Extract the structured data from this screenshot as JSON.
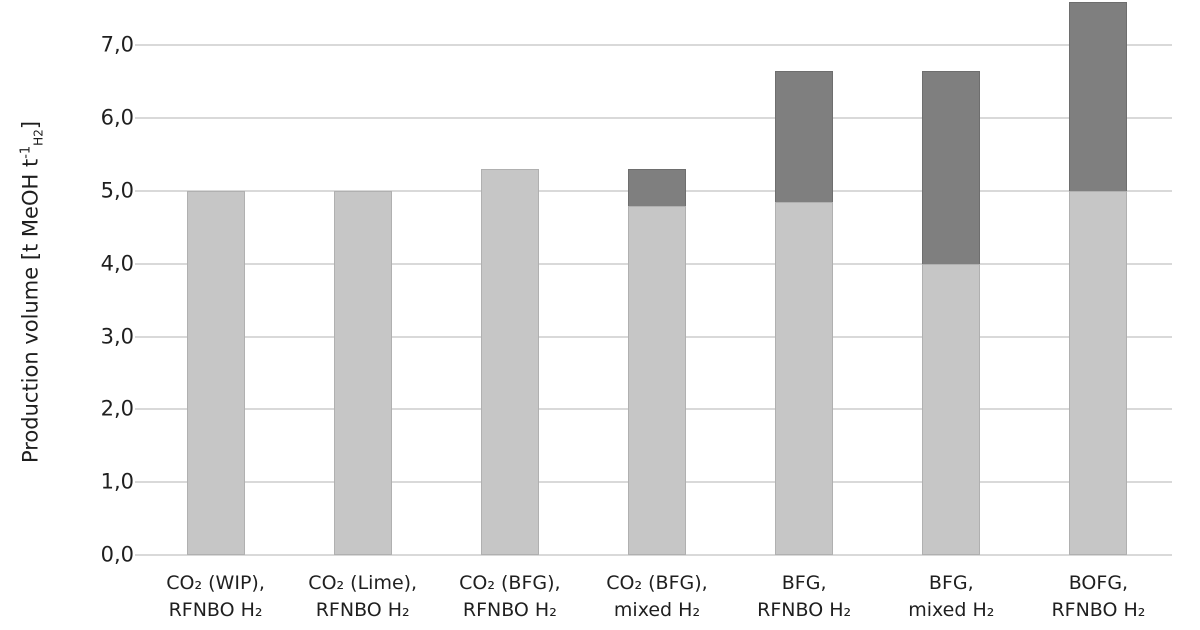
{
  "chart_data": {
    "type": "bar",
    "stacked": true,
    "title": "",
    "xlabel": "",
    "ylabel_parts": {
      "prefix": "Production volume [t MeOH t",
      "superscript": "-1",
      "subscript": "H2",
      "suffix": "]"
    },
    "ylabel_plain": "Production volume [t MeOH t-1H2]",
    "categories": [
      "CO₂ (WIP), RFNBO H₂",
      "CO₂ (Lime), RFNBO H₂",
      "CO₂ (BFG), RFNBO H₂",
      "CO₂ (BFG), mixed H₂",
      "BFG, RFNBO H₂",
      "BFG, mixed H₂",
      "BOFG, RFNBO H₂"
    ],
    "categories_lines": [
      {
        "line1": "CO₂ (WIP),",
        "line2": "RFNBO H₂"
      },
      {
        "line1": "CO₂ (Lime),",
        "line2": "RFNBO H₂"
      },
      {
        "line1": "CO₂ (BFG),",
        "line2": "RFNBO H₂"
      },
      {
        "line1": "CO₂ (BFG),",
        "line2": "mixed H₂"
      },
      {
        "line1": "BFG,",
        "line2": "RFNBO H₂"
      },
      {
        "line1": "BFG,",
        "line2": "mixed H₂"
      },
      {
        "line1": "BOFG,",
        "line2": "RFNBO H₂"
      }
    ],
    "series": [
      {
        "name": "lower-segment-light-gray",
        "color": "#c6c6c6",
        "values": [
          5.0,
          5.0,
          5.3,
          4.8,
          4.85,
          4.0,
          5.0
        ]
      },
      {
        "name": "upper-segment-dark-gray",
        "color": "#7f7f7f",
        "values": [
          0,
          0,
          0,
          0.5,
          1.8,
          2.65,
          2.6
        ]
      }
    ],
    "totals": [
      5.0,
      5.0,
      5.3,
      5.3,
      6.65,
      6.65,
      7.6
    ],
    "yticks": [
      {
        "label": "0,0",
        "value": 0
      },
      {
        "label": "1,0",
        "value": 1
      },
      {
        "label": "2,0",
        "value": 2
      },
      {
        "label": "3,0",
        "value": 3
      },
      {
        "label": "4,0",
        "value": 4
      },
      {
        "label": "5,0",
        "value": 5
      },
      {
        "label": "6,0",
        "value": 6
      },
      {
        "label": "7,0",
        "value": 7
      }
    ],
    "ylim": [
      0,
      7.62
    ],
    "grid": "horizontal",
    "legend": "none",
    "decimal_separator": ","
  },
  "colors": {
    "background": "#ffffff",
    "gridline": "#d9d9d9",
    "axis_line": "#d9d9d9",
    "text": "#1f1f1f",
    "bar_light": "#c6c6c6",
    "bar_dark": "#7f7f7f"
  }
}
